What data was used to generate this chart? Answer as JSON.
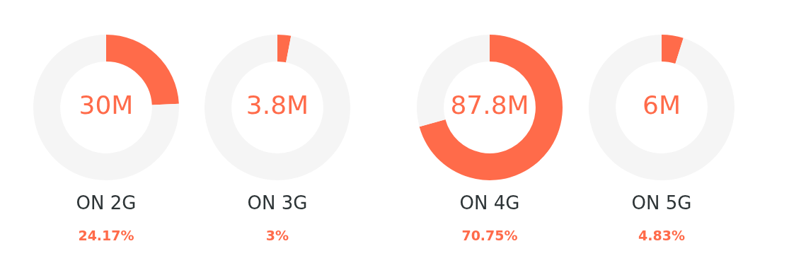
{
  "chart_data": [
    {
      "type": "donut",
      "title": "ON 2G",
      "subtitle": "24.17%",
      "categories": [
        null,
        null
      ],
      "values": [
        24.17,
        75.83
      ],
      "colors": [
        "#ff6b4a",
        "#f5f5f5"
      ],
      "annotations": [
        "30M"
      ]
    },
    {
      "type": "donut",
      "title": "ON 3G",
      "subtitle": "3%",
      "categories": [
        null,
        null
      ],
      "values": [
        3,
        97
      ],
      "colors": [
        "#ff6b4a",
        "#f5f5f5"
      ],
      "annotations": [
        "3.8M"
      ]
    },
    {
      "type": "donut",
      "title": "ON 4G",
      "subtitle": "70.75%",
      "categories": [
        null,
        null
      ],
      "values": [
        70.75,
        29.25
      ],
      "colors": [
        "#ff6b4a",
        "#f5f5f5"
      ],
      "annotations": [
        "87.8M"
      ]
    },
    {
      "type": "donut",
      "title": "ON 5G",
      "subtitle": "4.83%",
      "categories": [
        null,
        null
      ],
      "values": [
        4.83,
        95.17
      ],
      "colors": [
        "#ff6b4a",
        "#f5f5f5"
      ],
      "annotations": [
        "6M"
      ]
    }
  ]
}
